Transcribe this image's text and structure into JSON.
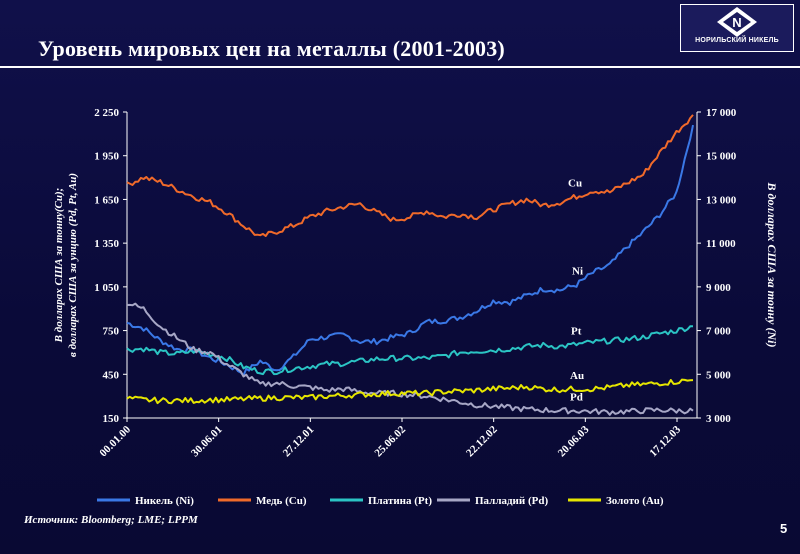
{
  "slide": {
    "title": "Уровень мировых цен на металлы  (2001-2003)",
    "logo_text": "НОРИЛЬСКИЙ НИКЕЛЬ",
    "source": "Источник: Bloomberg; LME; LPPM",
    "page_number": "5"
  },
  "chart_data": {
    "type": "line",
    "title": "",
    "ylabel_left_line1": "В долларах США за тонну(Cu);",
    "ylabel_left_line2": "в долларах США за унцию (Pd, Pt, Au)",
    "ylabel_right": "В долларах США за тонну (Ni)",
    "x_ticks": [
      "00.01.00",
      "30.06.01",
      "27.12.01",
      "25.06.02",
      "22.12.02",
      "20.06.03",
      "17.12.03"
    ],
    "left_axis": {
      "min": 150,
      "max": 2250,
      "ticks": [
        "150",
        "450",
        "750",
        "1 050",
        "1 350",
        "1 650",
        "1 950",
        "2 250"
      ]
    },
    "right_axis": {
      "min": 3000,
      "max": 17000,
      "ticks": [
        "3 000",
        "5 000",
        "7 000",
        "9 000",
        "11 000",
        "13 000",
        "15 000",
        "17 000"
      ]
    },
    "grid": false,
    "legend_position": "bottom",
    "series": [
      {
        "name": "Никель (Ni)",
        "label": "Ni",
        "axis": "right",
        "color": "#3a78e6",
        "values": [
          7350,
          7100,
          6550,
          6150,
          6100,
          5750,
          5450,
          5050,
          5600,
          5200,
          5800,
          6600,
          6700,
          6800,
          6500,
          6500,
          6700,
          6900,
          7400,
          7450,
          7600,
          7900,
          8350,
          8300,
          8600,
          8900,
          8850,
          9100,
          9650,
          10000,
          10800,
          11500,
          12300,
          13300,
          16400
        ]
      },
      {
        "name": "Медь (Cu)",
        "label": "Cu",
        "axis": "left",
        "color": "#f06a2a",
        "values": [
          1750,
          1800,
          1770,
          1720,
          1670,
          1630,
          1560,
          1470,
          1390,
          1430,
          1470,
          1530,
          1570,
          1600,
          1620,
          1560,
          1510,
          1530,
          1570,
          1530,
          1550,
          1530,
          1580,
          1620,
          1650,
          1610,
          1630,
          1670,
          1710,
          1700,
          1760,
          1820,
          1970,
          2110,
          2230
        ]
      },
      {
        "name": "Платина (Pt)",
        "label": "Pt",
        "axis": "left",
        "color": "#2bc4c4",
        "values": [
          620,
          625,
          600,
          590,
          610,
          590,
          560,
          500,
          470,
          470,
          490,
          505,
          520,
          525,
          540,
          555,
          560,
          560,
          560,
          575,
          600,
          610,
          615,
          625,
          640,
          650,
          640,
          655,
          670,
          680,
          690,
          705,
          730,
          750,
          780
        ]
      },
      {
        "name": "Палладий (Pd)",
        "label": "Pd",
        "axis": "left",
        "color": "#a7a7c6",
        "values": [
          940,
          900,
          780,
          700,
          620,
          600,
          520,
          450,
          380,
          390,
          370,
          360,
          340,
          350,
          330,
          320,
          320,
          310,
          300,
          280,
          260,
          240,
          230,
          220,
          210,
          205,
          200,
          200,
          195,
          190,
          195,
          200,
          205,
          200,
          200
        ]
      },
      {
        "name": "Золото (Au)",
        "label": "Au",
        "axis": "left",
        "color": "#e6e600",
        "values": [
          285,
          275,
          270,
          270,
          270,
          275,
          275,
          280,
          285,
          290,
          290,
          290,
          300,
          305,
          310,
          315,
          320,
          320,
          320,
          330,
          335,
          340,
          350,
          355,
          365,
          350,
          345,
          350,
          350,
          360,
          375,
          380,
          390,
          400,
          410
        ]
      }
    ]
  }
}
